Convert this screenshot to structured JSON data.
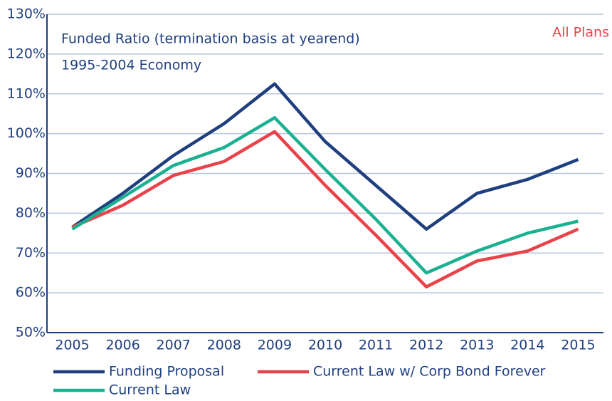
{
  "chart_data": {
    "type": "line",
    "title": "Funded Ratio (termination basis at yearend)",
    "subtitle": "1995-2004 Economy",
    "annotation": "All Plans",
    "categories": [
      "2005",
      "2006",
      "2007",
      "2008",
      "2009",
      "2010",
      "2011",
      "2012",
      "2013",
      "2014",
      "2015"
    ],
    "series": [
      {
        "name": "Funding Proposal",
        "color": "#1f3f7f",
        "values": [
          76.5,
          85,
          94.5,
          102.5,
          112.5,
          98,
          87,
          76,
          85,
          88.5,
          93.5
        ]
      },
      {
        "name": "Current Law w/ Corp Bond Forever",
        "color": "#e8434a",
        "values": [
          76.5,
          82,
          89.5,
          93,
          100.5,
          87,
          74.5,
          61.5,
          68,
          70.5,
          76
        ]
      },
      {
        "name": "Current Law",
        "color": "#1bb091",
        "values": [
          76,
          84,
          92,
          96.5,
          104,
          91,
          78.5,
          65,
          70.5,
          75,
          78
        ]
      }
    ],
    "ylim": [
      50,
      130
    ],
    "yticks": [
      {
        "value": 50,
        "label": "50%"
      },
      {
        "value": 60,
        "label": "60%"
      },
      {
        "value": 70,
        "label": "70%"
      },
      {
        "value": 80,
        "label": "80%"
      },
      {
        "value": 90,
        "label": "90%"
      },
      {
        "value": 100,
        "label": "100%"
      },
      {
        "value": 110,
        "label": "110%"
      },
      {
        "value": 120,
        "label": "120%"
      },
      {
        "value": 130,
        "label": "130%"
      }
    ],
    "grid": true
  }
}
